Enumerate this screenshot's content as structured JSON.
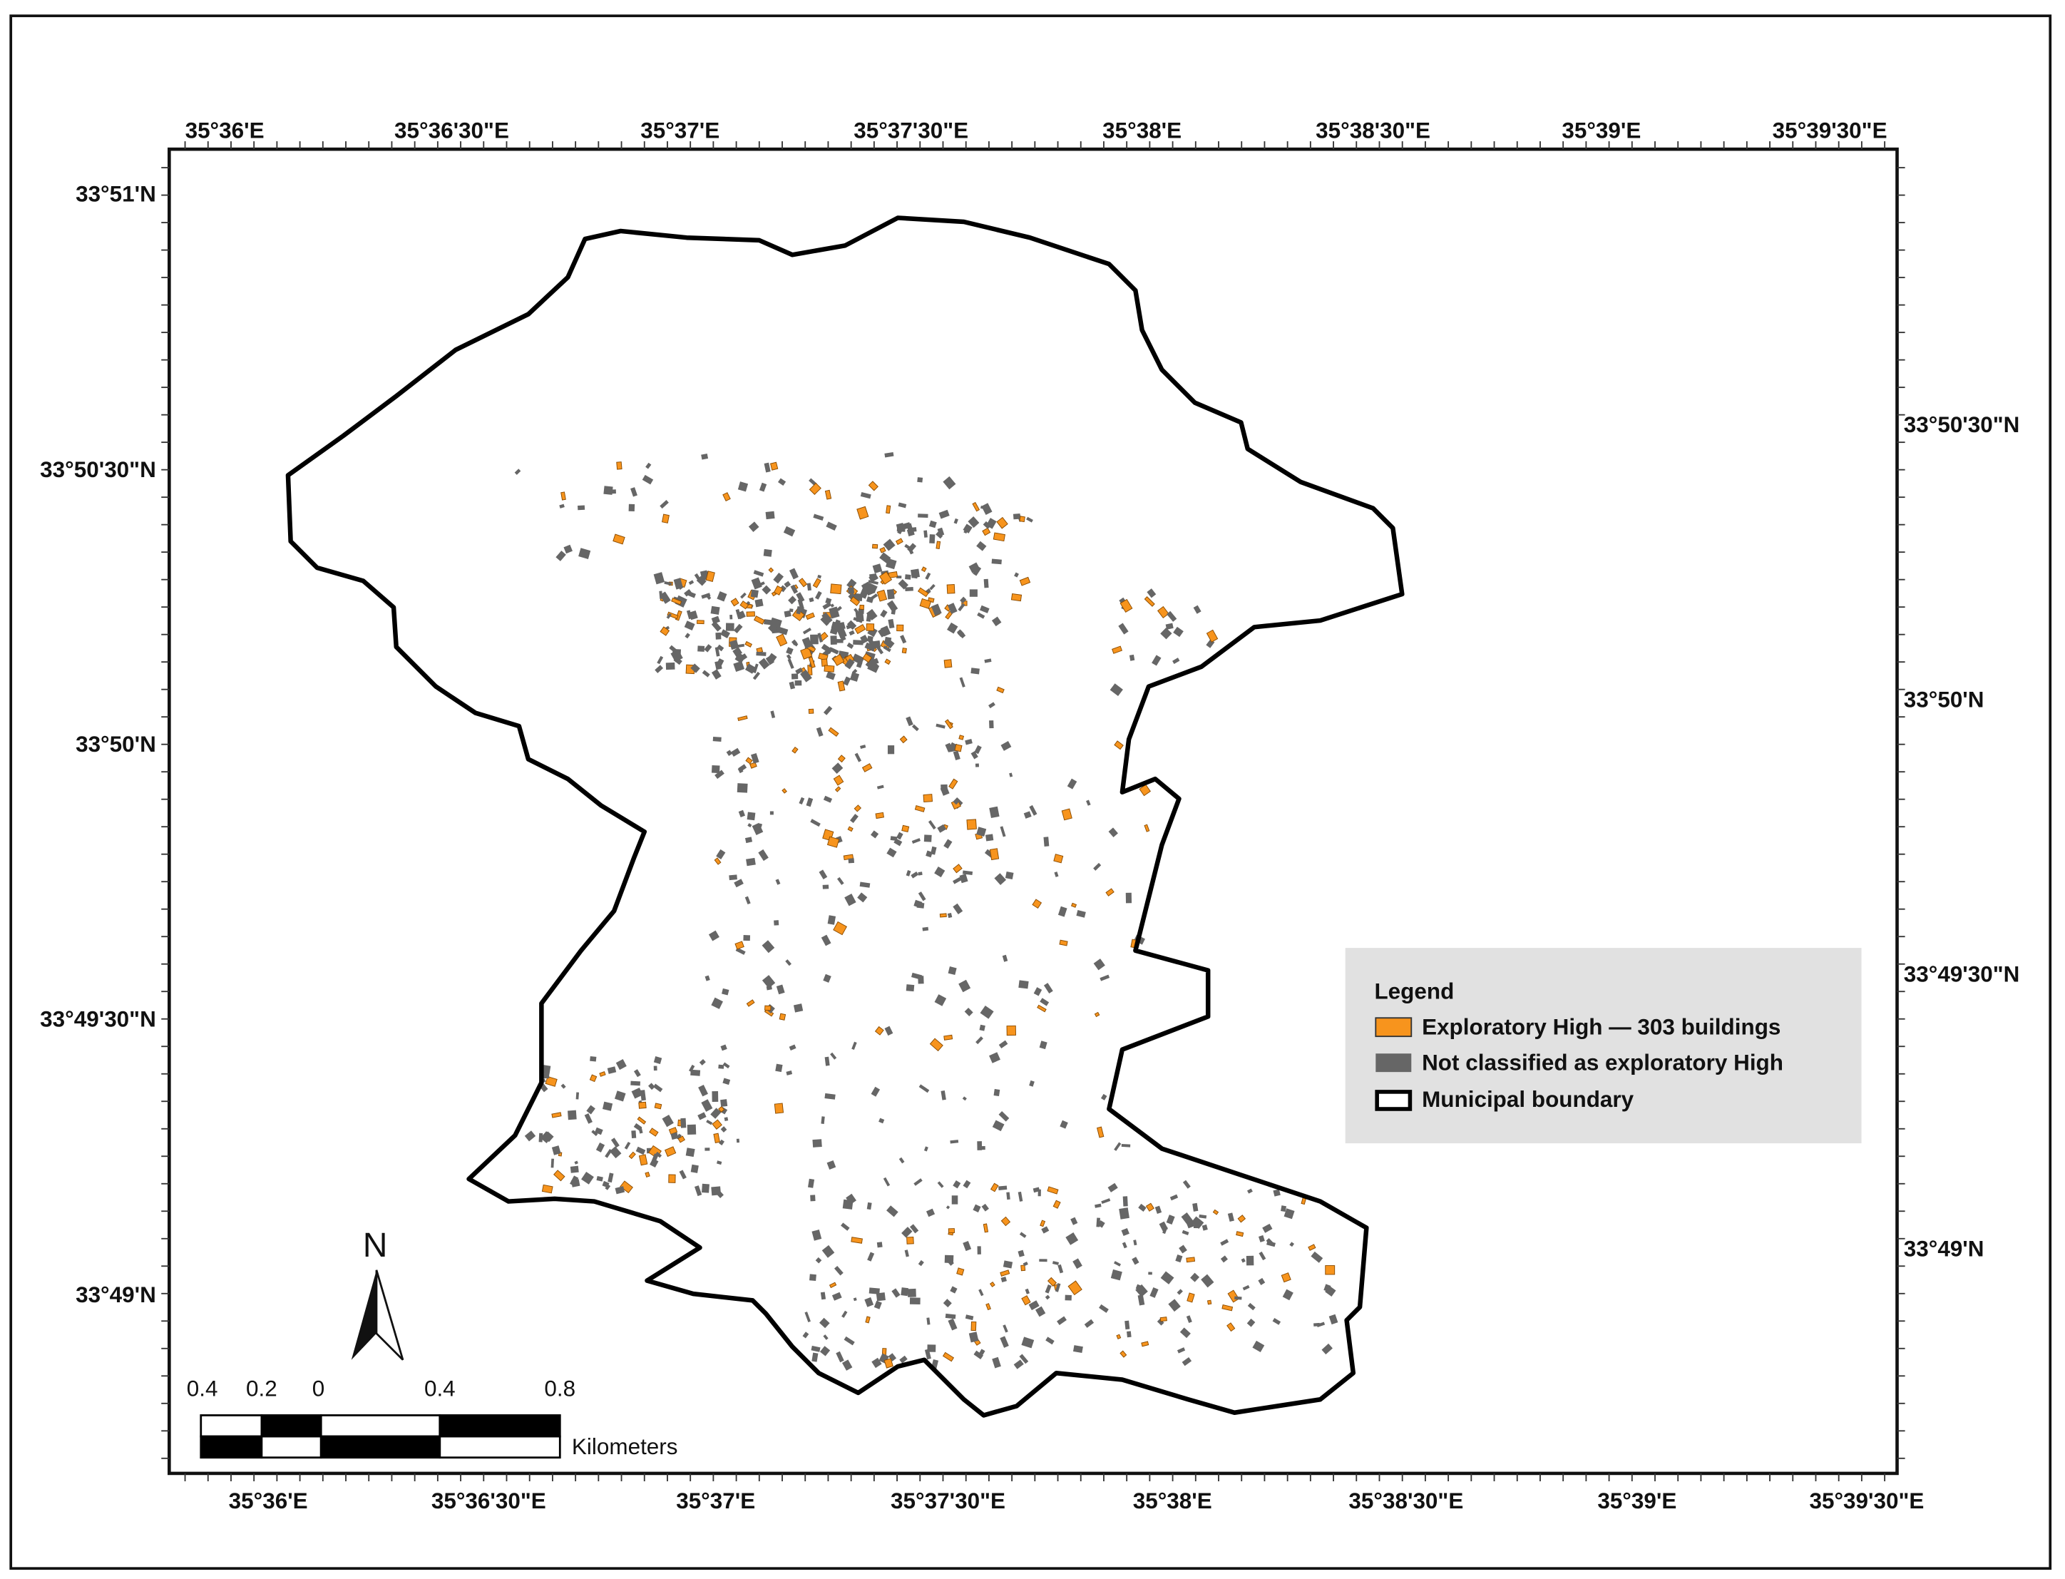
{
  "map": {
    "top_labels": [
      "35°36'E",
      "35°36'30\"E",
      "35°37'E",
      "35°37'30\"E",
      "35°38'E",
      "35°38'30\"E",
      "35°39'E",
      "35°39'30\"E"
    ],
    "bottom_labels": [
      "35°36'E",
      "35°36'30\"E",
      "35°37'E",
      "35°37'30\"E",
      "35°38'E",
      "35°38'30\"E",
      "35°39'E",
      "35°39'30\"E"
    ],
    "left_labels": [
      "33°51'N",
      "33°50'30\"N",
      "33°50'N",
      "33°49'30\"N",
      "33°49'N"
    ],
    "right_labels": [
      "33°50'30\"N",
      "33°50'N",
      "33°49'30\"N",
      "33°49'N"
    ],
    "legend": {
      "title": "Legend",
      "items": [
        "Exploratory High — 303 buildings",
        "Not classified as exploratory High",
        "Municipal boundary"
      ]
    },
    "north": "N",
    "scale": {
      "labels": [
        "0.4",
        "0.2",
        "0",
        "0.4",
        "0.8"
      ],
      "unit": "Kilometers"
    }
  }
}
